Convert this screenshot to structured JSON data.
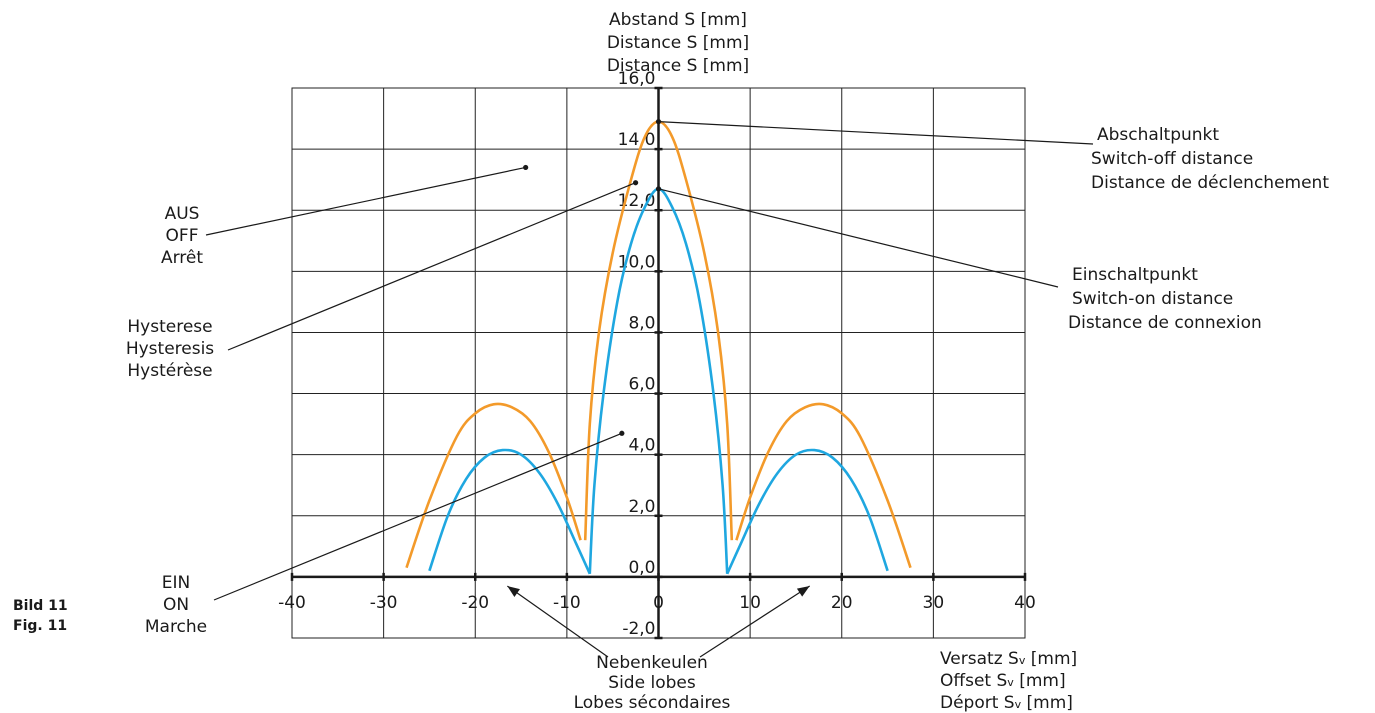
{
  "figure_label": [
    "Bild 11",
    "Fig. 11"
  ],
  "chart_data": {
    "type": "line",
    "y_axis_title": [
      "Abstand S [mm]",
      "Distance S [mm]",
      "Distance S [mm]"
    ],
    "x_axis_title": [
      {
        "prefix": "Versatz S",
        "sub": "v",
        "suffix": " [mm]"
      },
      {
        "prefix": "Offset S",
        "sub": "v",
        "suffix": " [mm]"
      },
      {
        "prefix": "Déport S",
        "sub": "v",
        "suffix": " [mm]"
      }
    ],
    "xlim": [
      -40,
      40
    ],
    "ylim": [
      -2,
      16
    ],
    "x_ticks": [
      -40,
      -30,
      -20,
      -10,
      0,
      10,
      20,
      30,
      40
    ],
    "x_tick_labels": [
      "-40",
      "-30",
      "-20",
      "-10",
      "0",
      "10",
      "20",
      "30",
      "40"
    ],
    "y_ticks": [
      -2,
      0,
      2,
      4,
      6,
      8,
      10,
      12,
      14,
      16
    ],
    "y_tick_labels": [
      "-2,0",
      "0,0",
      "2,0",
      "4,0",
      "6,0",
      "8,0",
      "10,0",
      "12,0",
      "14,0",
      "16,0"
    ],
    "grid": true,
    "series": [
      {
        "color": "#f39a2a",
        "segments": [
          [
            [
              -27.5,
              0.3
            ],
            [
              -25,
              2.5
            ],
            [
              -22,
              4.6
            ],
            [
              -20,
              5.35
            ],
            [
              -18,
              5.65
            ],
            [
              -16,
              5.55
            ],
            [
              -14,
              5.1
            ],
            [
              -12,
              4.1
            ],
            [
              -10,
              2.6
            ],
            [
              -8.5,
              1.2
            ]
          ],
          [
            [
              -8,
              1.2
            ],
            [
              -7.5,
              5
            ],
            [
              -6.5,
              8
            ],
            [
              -5,
              10.6
            ],
            [
              -3,
              13
            ],
            [
              -1.5,
              14.4
            ],
            [
              0,
              14.9
            ],
            [
              1.5,
              14.4
            ],
            [
              3,
              13
            ],
            [
              5,
              10.6
            ],
            [
              6.5,
              8
            ],
            [
              7.5,
              5
            ],
            [
              8,
              1.2
            ]
          ],
          [
            [
              8.5,
              1.2
            ],
            [
              10,
              2.6
            ],
            [
              12,
              4.1
            ],
            [
              14,
              5.1
            ],
            [
              16,
              5.55
            ],
            [
              18,
              5.65
            ],
            [
              20,
              5.35
            ],
            [
              22,
              4.6
            ],
            [
              25,
              2.5
            ],
            [
              27.5,
              0.3
            ]
          ]
        ]
      },
      {
        "color": "#1fa7e0",
        "segments": [
          [
            [
              -25,
              0.2
            ],
            [
              -23,
              2
            ],
            [
              -21,
              3.2
            ],
            [
              -19,
              3.9
            ],
            [
              -17,
              4.15
            ],
            [
              -15,
              4.0
            ],
            [
              -13,
              3.4
            ],
            [
              -11,
              2.4
            ],
            [
              -9,
              1.1
            ],
            [
              -7.5,
              0.1
            ]
          ],
          [
            [
              -7.5,
              0.1
            ],
            [
              -7,
              3
            ],
            [
              -6,
              6
            ],
            [
              -4.5,
              9
            ],
            [
              -3,
              10.9
            ],
            [
              -1.5,
              12.1
            ],
            [
              0,
              12.7
            ],
            [
              1.5,
              12.1
            ],
            [
              3,
              10.9
            ],
            [
              4.5,
              9
            ],
            [
              6,
              6
            ],
            [
              7,
              3
            ],
            [
              7.5,
              0.1
            ]
          ],
          [
            [
              7.5,
              0.1
            ],
            [
              9,
              1.1
            ],
            [
              11,
              2.4
            ],
            [
              13,
              3.4
            ],
            [
              15,
              4.0
            ],
            [
              17,
              4.15
            ],
            [
              19,
              3.9
            ],
            [
              21,
              3.2
            ],
            [
              23,
              2
            ],
            [
              25,
              0.2
            ]
          ]
        ]
      }
    ],
    "annotations": [
      {
        "lines": [
          "AUS",
          "OFF",
          "Arrêt"
        ],
        "point": [
          -14.5,
          13.4
        ]
      },
      {
        "lines": [
          "Hysterese",
          "Hysteresis",
          "Hystérèse"
        ],
        "point": [
          -2.5,
          12.9
        ]
      },
      {
        "lines": [
          "EIN",
          "ON",
          "Marche"
        ],
        "point": [
          -4,
          4.7
        ]
      },
      {
        "lines": [
          "Abschaltpunkt",
          "Switch-off distance",
          "Distance de déclenchement"
        ],
        "point": [
          0,
          14.9
        ]
      },
      {
        "lines": [
          "Einschaltpunkt",
          "Switch-on distance",
          "Distance de connexion"
        ],
        "point": [
          0,
          12.7
        ]
      },
      {
        "lines": [
          "Nebenkeulen",
          "Side lobes",
          "Lobes sécondaires"
        ],
        "points": [
          [
            -16.5,
            -0.3
          ],
          [
            16.5,
            -0.3
          ]
        ]
      }
    ]
  }
}
